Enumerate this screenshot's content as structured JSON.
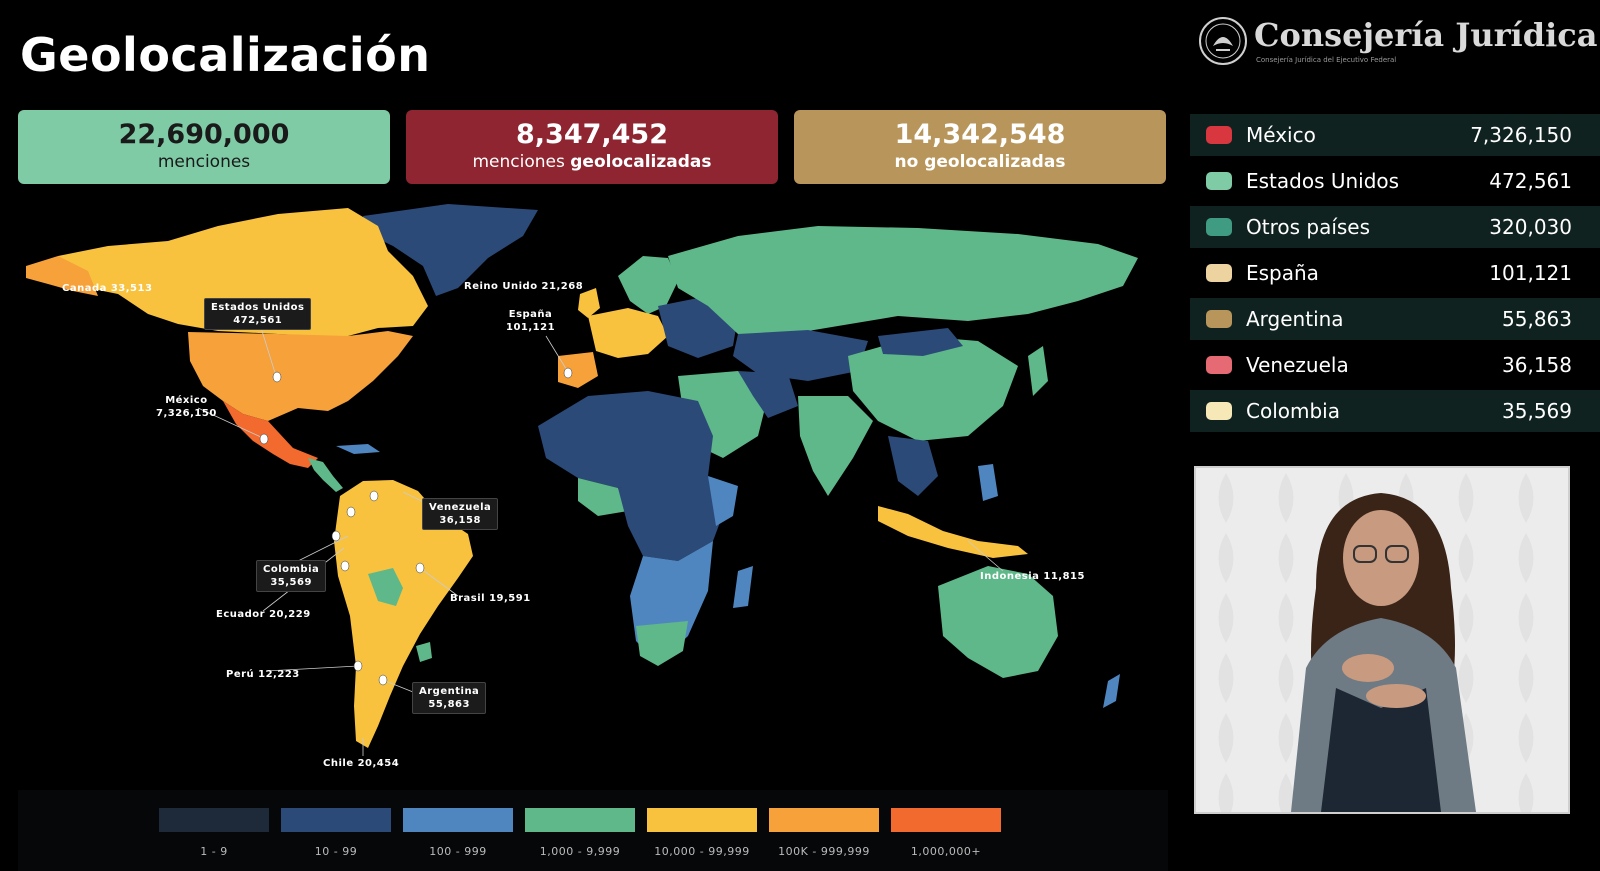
{
  "page": {
    "title": "Geolocalización"
  },
  "brand": {
    "name": "Consejería Jurídica",
    "subtitle": "Consejería Jurídica del Ejecutivo Federal"
  },
  "kpis": [
    {
      "value": "22,690,000",
      "label": "menciones",
      "label_bold": "",
      "color": "#7fcba6"
    },
    {
      "value": "8,347,452",
      "label": "menciones",
      "label_bold": "geolocalizadas",
      "color": "#8e2530"
    },
    {
      "value": "14,342,548",
      "label": "",
      "label_bold": "no geolocalizadas",
      "color": "#b8965b"
    }
  ],
  "map": {
    "callouts": {
      "canada": "Canada 33,513",
      "usa_name": "Estados Unidos",
      "usa_value": "472,561",
      "mexico_name": "México",
      "mexico_value": "7,326,150",
      "uk": "Reino Unido 21,268",
      "spain_name": "España",
      "spain_value": "101,121",
      "venezuela_name": "Venezuela",
      "venezuela_value": "36,158",
      "colombia_name": "Colombia",
      "colombia_value": "35,569",
      "ecuador": "Ecuador 20,229",
      "brasil": "Brasil 19,591",
      "peru": "Perú 12,223",
      "argentina_name": "Argentina",
      "argentina_value": "55,863",
      "chile": "Chile 20,454",
      "indonesia": "Indonesia 11,815"
    },
    "scale": [
      {
        "label": "1 - 9",
        "color": "#1e2a3a"
      },
      {
        "label": "10 - 99",
        "color": "#2c4a78"
      },
      {
        "label": "100 - 999",
        "color": "#4f86c0"
      },
      {
        "label": "1,000 - 9,999",
        "color": "#5eb88a"
      },
      {
        "label": "10,000 - 99,999",
        "color": "#f8c23e"
      },
      {
        "label": "100K - 999,999",
        "color": "#f6a13a"
      },
      {
        "label": "1,000,000+",
        "color": "#f26a2d"
      }
    ]
  },
  "country_table": [
    {
      "name": "México",
      "value": "7,326,150",
      "color": "#d9373f"
    },
    {
      "name": "Estados Unidos",
      "value": "472,561",
      "color": "#7fcba6"
    },
    {
      "name": "Otros países",
      "value": "320,030",
      "color": "#3f9c82"
    },
    {
      "name": "España",
      "value": "101,121",
      "color": "#ecd3a0"
    },
    {
      "name": "Argentina",
      "value": "55,863",
      "color": "#b8965b"
    },
    {
      "name": "Venezuela",
      "value": "36,158",
      "color": "#e66a73"
    },
    {
      "name": "Colombia",
      "value": "35,569",
      "color": "#f7e8b8"
    }
  ]
}
